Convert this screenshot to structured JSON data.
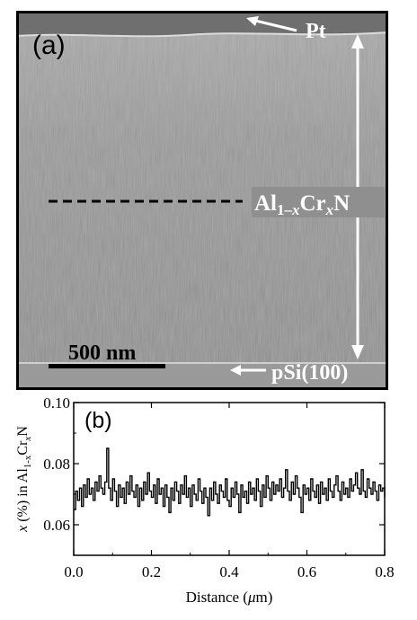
{
  "panel_a": {
    "label": "(a)",
    "annotations": {
      "top_layer": "Pt",
      "film_prefix": "Al",
      "film_sub1": "1–",
      "film_sub2": "x",
      "film_mid": "Cr",
      "film_sub3": "x",
      "film_suffix": "N",
      "substrate": "pSi(100)"
    },
    "scale_bar": {
      "label": "500 nm",
      "length_nm": 500
    }
  },
  "chart_data": {
    "type": "line",
    "label": "(b)",
    "xlabel_prefix": "Distance (",
    "xlabel_mu": "μ",
    "xlabel_suffix": "m)",
    "ylabel": {
      "x": "x",
      "mid": " (%) in Al",
      "sub1": "1-x",
      "cr": "Cr",
      "sub2": "x",
      "n": "N"
    },
    "xlim": [
      0.0,
      0.8
    ],
    "ylim": [
      0.05,
      0.1
    ],
    "xticks": [
      "0.0",
      "0.2",
      "0.4",
      "0.6",
      "0.8"
    ],
    "yticks": [
      "0.06",
      "0.08",
      "0.10"
    ],
    "x": [
      0.0,
      0.005,
      0.01,
      0.015,
      0.02,
      0.025,
      0.03,
      0.035,
      0.04,
      0.045,
      0.05,
      0.055,
      0.06,
      0.065,
      0.07,
      0.075,
      0.08,
      0.085,
      0.09,
      0.095,
      0.1,
      0.105,
      0.11,
      0.115,
      0.12,
      0.125,
      0.13,
      0.135,
      0.14,
      0.145,
      0.15,
      0.155,
      0.16,
      0.165,
      0.17,
      0.175,
      0.18,
      0.185,
      0.19,
      0.195,
      0.2,
      0.205,
      0.21,
      0.215,
      0.22,
      0.225,
      0.23,
      0.235,
      0.24,
      0.245,
      0.25,
      0.255,
      0.26,
      0.265,
      0.27,
      0.275,
      0.28,
      0.285,
      0.29,
      0.295,
      0.3,
      0.305,
      0.31,
      0.315,
      0.32,
      0.325,
      0.33,
      0.335,
      0.34,
      0.345,
      0.35,
      0.355,
      0.36,
      0.365,
      0.37,
      0.375,
      0.38,
      0.385,
      0.39,
      0.395,
      0.4,
      0.405,
      0.41,
      0.415,
      0.42,
      0.425,
      0.43,
      0.435,
      0.44,
      0.445,
      0.45,
      0.455,
      0.46,
      0.465,
      0.47,
      0.475,
      0.48,
      0.485,
      0.49,
      0.495,
      0.5,
      0.505,
      0.51,
      0.515,
      0.52,
      0.525,
      0.53,
      0.535,
      0.54,
      0.545,
      0.55,
      0.555,
      0.56,
      0.565,
      0.57,
      0.575,
      0.58,
      0.585,
      0.59,
      0.595,
      0.6,
      0.605,
      0.61,
      0.615,
      0.62,
      0.625,
      0.63,
      0.635,
      0.64,
      0.645,
      0.65,
      0.655,
      0.66,
      0.665,
      0.67,
      0.675,
      0.68,
      0.685,
      0.69,
      0.695,
      0.7,
      0.705,
      0.71,
      0.715,
      0.72,
      0.725,
      0.73,
      0.735,
      0.74,
      0.745,
      0.75,
      0.755,
      0.76,
      0.765,
      0.77,
      0.775,
      0.78,
      0.785,
      0.79,
      0.795,
      0.8
    ],
    "y": [
      0.065,
      0.071,
      0.068,
      0.072,
      0.066,
      0.073,
      0.069,
      0.075,
      0.07,
      0.072,
      0.068,
      0.074,
      0.071,
      0.076,
      0.072,
      0.07,
      0.074,
      0.085,
      0.072,
      0.068,
      0.075,
      0.071,
      0.066,
      0.073,
      0.069,
      0.072,
      0.067,
      0.074,
      0.07,
      0.076,
      0.071,
      0.069,
      0.073,
      0.066,
      0.072,
      0.068,
      0.074,
      0.07,
      0.077,
      0.071,
      0.069,
      0.073,
      0.067,
      0.075,
      0.07,
      0.072,
      0.066,
      0.073,
      0.069,
      0.064,
      0.072,
      0.068,
      0.074,
      0.071,
      0.067,
      0.073,
      0.07,
      0.076,
      0.069,
      0.072,
      0.066,
      0.073,
      0.07,
      0.068,
      0.075,
      0.071,
      0.067,
      0.072,
      0.069,
      0.063,
      0.072,
      0.068,
      0.074,
      0.07,
      0.067,
      0.073,
      0.071,
      0.069,
      0.075,
      0.068,
      0.066,
      0.072,
      0.069,
      0.074,
      0.07,
      0.064,
      0.073,
      0.069,
      0.071,
      0.067,
      0.074,
      0.07,
      0.072,
      0.068,
      0.075,
      0.071,
      0.066,
      0.073,
      0.069,
      0.076,
      0.072,
      0.068,
      0.074,
      0.07,
      0.073,
      0.071,
      0.075,
      0.069,
      0.072,
      0.078,
      0.071,
      0.068,
      0.074,
      0.07,
      0.076,
      0.072,
      0.069,
      0.064,
      0.073,
      0.07,
      0.072,
      0.068,
      0.075,
      0.071,
      0.069,
      0.073,
      0.067,
      0.074,
      0.07,
      0.072,
      0.068,
      0.075,
      0.071,
      0.069,
      0.073,
      0.076,
      0.071,
      0.068,
      0.074,
      0.07,
      0.072,
      0.069,
      0.075,
      0.071,
      0.073,
      0.077,
      0.072,
      0.07,
      0.078,
      0.071,
      0.069,
      0.075,
      0.072,
      0.07,
      0.074,
      0.071,
      0.068,
      0.073,
      0.071,
      0.072,
      0.069
    ]
  },
  "colors": {
    "micrograph_bg": "#8c8c8c",
    "annotation": "#ffffff",
    "plot_line": "#000000"
  }
}
